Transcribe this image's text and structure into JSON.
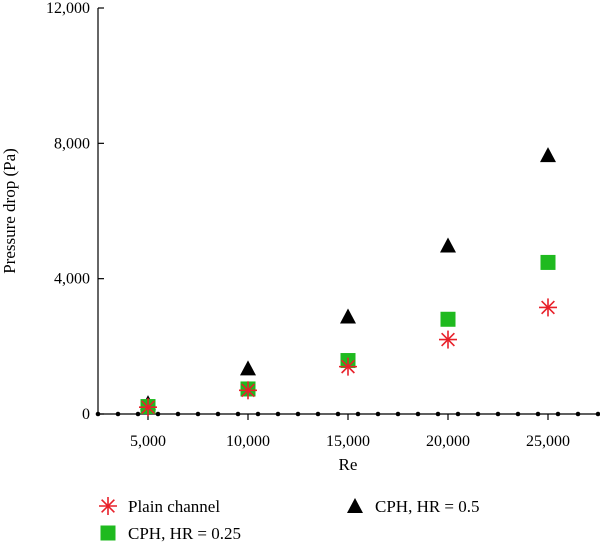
{
  "chart_data": {
    "type": "scatter",
    "xlabel": "Re",
    "ylabel": "Pressure drop (Pa)",
    "xlim": [
      2500,
      27500
    ],
    "ylim": [
      0,
      12000
    ],
    "x_ticks": [
      5000,
      10000,
      15000,
      20000,
      25000
    ],
    "x_tick_labels": [
      "5,000",
      "10,000",
      "15,000",
      "20,000",
      "25,000"
    ],
    "y_ticks": [
      0,
      4000,
      8000,
      12000
    ],
    "y_tick_labels": [
      "0",
      "4,000",
      "8,000",
      "12,000"
    ],
    "grid": false,
    "legend_position": "bottom",
    "x": [
      5000,
      10000,
      15000,
      20000,
      25000
    ],
    "series": [
      {
        "name": "Plain channel",
        "marker": "asterisk",
        "color": "#e8202a",
        "values": [
          200,
          700,
          1400,
          2200,
          3150
        ]
      },
      {
        "name": "CPH, HR = 0.25",
        "marker": "square",
        "color": "#1fba1f",
        "values": [
          220,
          740,
          1580,
          2800,
          4480
        ]
      },
      {
        "name": "CPH, HR = 0.5",
        "marker": "triangle",
        "color": "#000000",
        "values": [
          320,
          1350,
          2880,
          4980,
          7650
        ]
      }
    ],
    "baseline_series": {
      "marker": "dot",
      "color": "#000000",
      "y": 0,
      "spacing": 1000
    }
  }
}
